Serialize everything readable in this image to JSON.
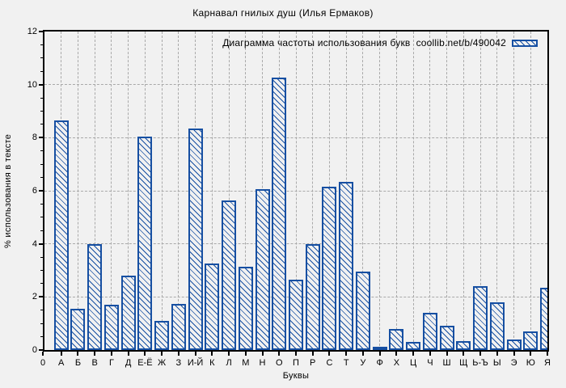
{
  "chart_data": {
    "type": "bar",
    "title": "Карнавал гнилых душ (Илья Ермаков)",
    "legend_label": "Диаграмма частоты использования букв  coollib.net/b/490042",
    "legend_position": "top-right inside plot",
    "xlabel": "Буквы",
    "ylabel": "% использования в тексте",
    "x_origin_label": "0",
    "ylim": [
      0,
      12
    ],
    "ytick_step": 2,
    "yticks": [
      0,
      2,
      4,
      6,
      8,
      10,
      12
    ],
    "grid": true,
    "hatch_pattern": "backslash-diagonal",
    "categories": [
      "А",
      "Б",
      "В",
      "Г",
      "Д",
      "Е-Ё",
      "Ж",
      "З",
      "И-Й",
      "К",
      "Л",
      "М",
      "Н",
      "О",
      "П",
      "Р",
      "С",
      "Т",
      "У",
      "Ф",
      "Х",
      "Ц",
      "Ч",
      "Ш",
      "Щ",
      "Ь-Ъ",
      "Ы",
      "Э",
      "Ю",
      "Я"
    ],
    "values": [
      8.65,
      1.55,
      4.0,
      1.7,
      2.8,
      8.05,
      1.1,
      1.75,
      8.35,
      3.25,
      5.65,
      3.15,
      6.05,
      10.25,
      2.65,
      4.0,
      6.15,
      6.35,
      2.95,
      0.1,
      0.8,
      0.3,
      1.4,
      0.9,
      0.35,
      2.4,
      1.8,
      0.4,
      0.7,
      2.35
    ],
    "colors": {
      "bar": "#164fa2",
      "background": "#f1f1f1",
      "grid": "#a9a9a9",
      "axis": "#000000",
      "text": "#000000"
    }
  }
}
